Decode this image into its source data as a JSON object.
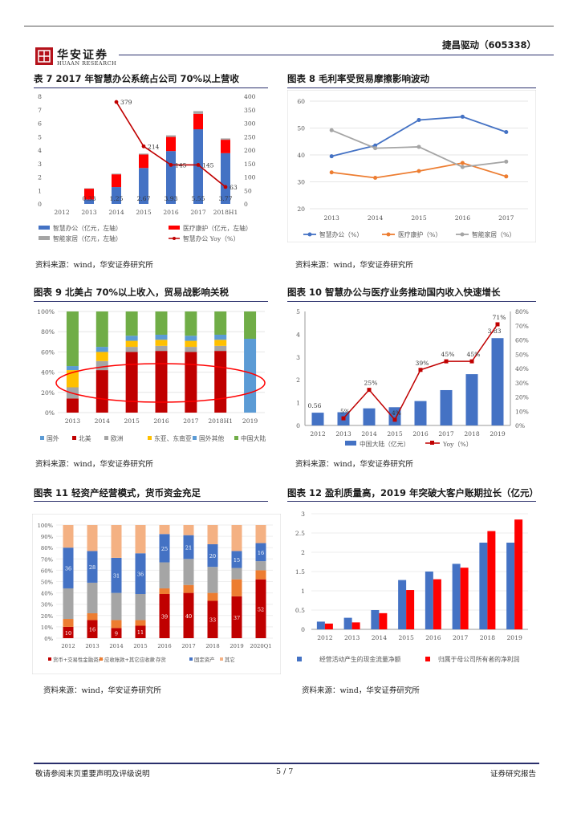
{
  "header": {
    "company": "捷昌驱动（605338）",
    "logo_cn": "华安证券",
    "logo_en": "HUAAN RESEARCH"
  },
  "footer": {
    "disclaimer": "敬请参阅末页重要声明及评级说明",
    "page": "5 / 7",
    "report_type": "证券研究报告"
  },
  "colors": {
    "blue": "#4472c4",
    "red": "#ff0000",
    "darkred": "#c00000",
    "gray": "#a5a5a5",
    "orange": "#ed7d31",
    "yellow": "#ffc000",
    "lightblue": "#5b9bd5",
    "green": "#70ad47",
    "peach": "#f4b183",
    "navy": "#2a2f6b"
  },
  "figures": [
    {
      "title": "表 7 2017 年智慧办公系统占公司 70%以上营收",
      "source": "资料来源：wind，华安证券研究所"
    },
    {
      "title": "图表 8 毛利率受贸易摩擦影响波动",
      "source": "资料来源：wind，华安证券研究所"
    },
    {
      "title": "图表 9 北美占 70%以上收入，贸易战影响关税",
      "source": "资料来源：wind，华安证券研究所"
    },
    {
      "title": "图表 10 智慧办公与医疗业务推动国内收入快速增长",
      "source": "资料来源：wind，华安证券研究所"
    },
    {
      "title": "图表 11 轻资产经营模式，货币资金充足",
      "source": "资料来源：wind，华安证券研究所"
    },
    {
      "title": "图表 12 盈利质量高，2019 年突破大客户账期拉长（亿元）",
      "source": "资料来源：wind，华安证券研究所"
    }
  ],
  "chart_data": [
    {
      "type": "bar",
      "stacked": true,
      "categories": [
        "2012",
        "2013",
        "2014",
        "2015",
        "2016",
        "2017",
        "2018H1"
      ],
      "ylim": [
        0,
        8
      ],
      "yticks": [
        0,
        1,
        2,
        3,
        4,
        5,
        6,
        7,
        8
      ],
      "y2lim": [
        0,
        400
      ],
      "y2ticks": [
        0,
        50,
        100,
        150,
        200,
        250,
        300,
        350,
        400
      ],
      "series": [
        {
          "name": "智慧办公（亿元，左轴）",
          "values": [
            0,
            0.33,
            1.25,
            2.67,
            3.93,
            5.55,
            3.77
          ]
        },
        {
          "name": "医疗康护（亿元，左轴）",
          "values": [
            0,
            0.8,
            0.95,
            1.0,
            1.05,
            1.15,
            1.0
          ]
        },
        {
          "name": "智能家居（亿元，左轴）",
          "values": [
            0,
            0.03,
            0.05,
            0.07,
            0.12,
            0.2,
            0.1
          ]
        },
        {
          "name": "智慧办公 Yoy（%）",
          "axis": "right",
          "values": [
            null,
            null,
            379,
            214,
            145,
            145,
            63
          ]
        }
      ],
      "bar_labels": [
        "",
        "0.33",
        "1.25",
        "2.67",
        "3.93",
        "5.55",
        "3.77"
      ],
      "line_labels": [
        "",
        "",
        "379",
        "214",
        "145",
        "145",
        "63"
      ],
      "legend": "bottom"
    },
    {
      "type": "line",
      "categories": [
        "2013",
        "2014",
        "2015",
        "2016",
        "2017"
      ],
      "ylim": [
        20,
        60
      ],
      "yticks": [
        20,
        30,
        40,
        50,
        60
      ],
      "series": [
        {
          "name": "智慧办公（%）",
          "values": [
            39.5,
            43.5,
            53,
            54.2,
            48.5
          ]
        },
        {
          "name": "医疗康护（%）",
          "values": [
            33.5,
            31.5,
            34,
            37,
            32
          ]
        },
        {
          "name": "智能家居（%）",
          "values": [
            49.2,
            42.5,
            43,
            35.5,
            37.5
          ]
        }
      ],
      "legend": "bottom"
    },
    {
      "type": "bar",
      "stacked": true,
      "percent": true,
      "categories": [
        "2013",
        "2014",
        "2015",
        "2016",
        "2017",
        "2018H1",
        "2019"
      ],
      "yticks": [
        "0%",
        "20%",
        "40%",
        "60%",
        "80%",
        "100%"
      ],
      "series": [
        {
          "name": "国外",
          "values": [
            0,
            0,
            0,
            0,
            0,
            0,
            73
          ]
        },
        {
          "name": "北美",
          "values": [
            14,
            42,
            60,
            61,
            60,
            61,
            0
          ]
        },
        {
          "name": "欧洲",
          "values": [
            11,
            9,
            5,
            5,
            5,
            5,
            0
          ]
        },
        {
          "name": "东亚、东南亚",
          "values": [
            17,
            9,
            6,
            6,
            6,
            6,
            0
          ]
        },
        {
          "name": "国外其他",
          "values": [
            4,
            5,
            5,
            5,
            5,
            5,
            0
          ]
        },
        {
          "name": "中国大陆",
          "values": [
            54,
            35,
            24,
            23,
            24,
            23,
            27
          ]
        }
      ],
      "legend": "bottom"
    },
    {
      "type": "bar",
      "categories": [
        "2012",
        "2013",
        "2014",
        "2015",
        "2016",
        "2017",
        "2018",
        "2019"
      ],
      "ylim": [
        0,
        5
      ],
      "yticks": [
        0,
        1,
        2,
        3,
        4,
        5
      ],
      "y2lim": [
        0,
        80
      ],
      "y2ticks": [
        "0%",
        "10%",
        "20%",
        "30%",
        "40%",
        "50%",
        "60%",
        "70%",
        "80%"
      ],
      "series": [
        {
          "name": "中国大陆（亿元）",
          "values": [
            0.56,
            0.58,
            0.75,
            0.8,
            1.07,
            1.55,
            2.25,
            3.83
          ]
        },
        {
          "name": "Yoy（%）",
          "axis": "right",
          "values": [
            null,
            5,
            25,
            4,
            39,
            45,
            45,
            71
          ]
        }
      ],
      "bar_labels": [
        "0.56",
        "",
        "",
        "",
        "",
        "",
        "",
        "3.83"
      ],
      "line_labels": [
        "",
        "5%",
        "25%",
        "4%",
        "39%",
        "45%",
        "45%",
        "71%"
      ],
      "legend": "bottom"
    },
    {
      "type": "bar",
      "stacked": true,
      "percent": true,
      "categories": [
        "2012",
        "2013",
        "2014",
        "2015",
        "2016",
        "2017",
        "2018",
        "2019",
        "2020Q1"
      ],
      "yticks": [
        "0%",
        "10%",
        "20%",
        "30%",
        "40%",
        "50%",
        "60%",
        "70%",
        "80%",
        "90%",
        "100%"
      ],
      "series": [
        {
          "name": "货币+交易性金融资产",
          "values": [
            10,
            16,
            9,
            11,
            39,
            40,
            33,
            37,
            52
          ]
        },
        {
          "name": "应收账款+其它应收款",
          "values": [
            7,
            6,
            7,
            5,
            5,
            7,
            7,
            15,
            8
          ]
        },
        {
          "name": "存货",
          "values": [
            27,
            27,
            24,
            23,
            23,
            23,
            23,
            10,
            8
          ]
        },
        {
          "name": "固定资产",
          "values": [
            36,
            28,
            31,
            36,
            25,
            21,
            20,
            15,
            16
          ]
        },
        {
          "name": "其它",
          "values": [
            20,
            23,
            29,
            25,
            8,
            9,
            17,
            23,
            16
          ]
        }
      ],
      "labels": {
        "货币+交易性金融资产": [
          "10",
          "16",
          "9",
          "11",
          "39",
          "40",
          "33",
          "37",
          "52"
        ],
        "固定资产": [
          "36",
          "28",
          "31",
          "36",
          "25",
          "21",
          "20",
          "15",
          "16"
        ]
      },
      "legend": "bottom"
    },
    {
      "type": "bar",
      "categories": [
        "2012",
        "2013",
        "2014",
        "2015",
        "2016",
        "2017",
        "2018",
        "2019"
      ],
      "ylim": [
        0,
        3
      ],
      "yticks": [
        "0",
        "0.5",
        "1",
        "1.5",
        "2",
        "2.5",
        "3"
      ],
      "series": [
        {
          "name": "经营活动产生的现金流量净额",
          "values": [
            0.2,
            0.3,
            0.5,
            1.28,
            1.5,
            1.7,
            2.25,
            2.25
          ]
        },
        {
          "name": "归属于母公司所有者的净利润",
          "values": [
            0.15,
            0.18,
            0.42,
            1.02,
            1.3,
            1.6,
            2.55,
            2.85
          ]
        }
      ],
      "legend": "bottom"
    }
  ]
}
